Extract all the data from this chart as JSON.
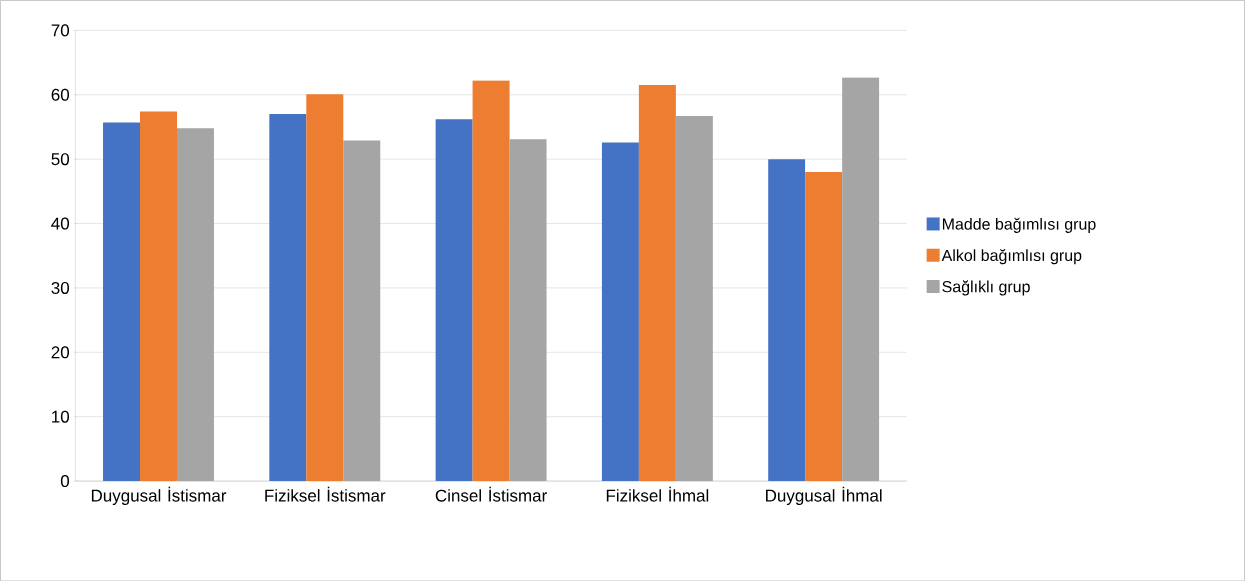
{
  "chart_data": {
    "type": "bar",
    "categories": [
      "Duygusal İstismar",
      "Fiziksel İstismar",
      "Cinsel İstismar",
      "Fiziksel İhmal",
      "Duygusal İhmal"
    ],
    "series": [
      {
        "name": "Madde bağımlısı grup",
        "color": "#4472c4",
        "values": [
          55.7,
          57.0,
          56.2,
          52.6,
          50.0
        ]
      },
      {
        "name": "Alkol bağımlısı grup",
        "color": "#ed7d31",
        "values": [
          57.4,
          60.1,
          62.2,
          61.5,
          48.0
        ]
      },
      {
        "name": "Sağlıklı grup",
        "color": "#a5a5a5",
        "values": [
          54.8,
          52.9,
          53.1,
          56.7,
          62.7
        ]
      }
    ],
    "ylim": [
      0,
      70
    ],
    "yticks": [
      0,
      10,
      20,
      30,
      40,
      50,
      60,
      70
    ],
    "grid": "y",
    "legend": "right"
  }
}
